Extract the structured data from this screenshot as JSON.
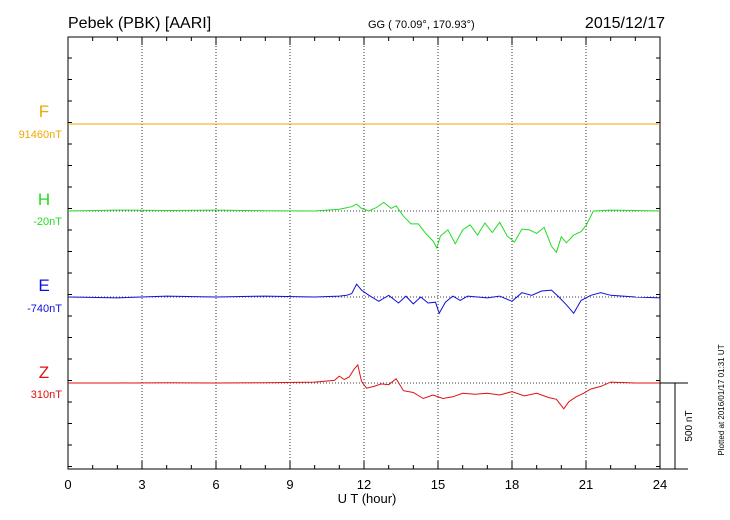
{
  "header": {
    "station": "Pebek (PBK)  [AARI]",
    "coords": "GG ( 70.09°, 170.93°)",
    "date": "2015/12/17"
  },
  "side_note": "Plotted at 2016/01/17 01:31  UT",
  "scale_label": "500 nT",
  "colors": {
    "F": "#f0a800",
    "H": "#22dd22",
    "E": "#1010dd",
    "Z": "#e01010"
  },
  "chart_data": {
    "type": "line",
    "xlabel": "U T (hour)",
    "xlim": [
      0,
      24
    ],
    "xticks": [
      0,
      3,
      6,
      9,
      12,
      15,
      18,
      21,
      24
    ],
    "scale_bar_nT": 500,
    "series": [
      {
        "name": "F",
        "baseline_label": "91460nT",
        "x": [
          0,
          3,
          6,
          9,
          12,
          15,
          18,
          21,
          24
        ],
        "y": [
          0,
          0,
          0,
          0,
          0,
          0,
          0,
          0,
          0
        ]
      },
      {
        "name": "H",
        "baseline_label": "-20nT",
        "x": [
          0,
          2,
          4,
          6,
          8,
          10,
          11,
          11.5,
          11.7,
          11.9,
          12.2,
          12.5,
          12.8,
          13.1,
          13.3,
          13.6,
          13.9,
          14.2,
          14.5,
          14.8,
          14.95,
          15.1,
          15.4,
          15.7,
          16.0,
          16.3,
          16.6,
          16.9,
          17.2,
          17.5,
          17.8,
          18.1,
          18.4,
          18.7,
          19.0,
          19.3,
          19.6,
          19.8,
          20.0,
          20.2,
          20.5,
          20.8,
          21.0,
          21.3,
          22,
          23,
          24
        ],
        "y": [
          0,
          5,
          3,
          5,
          2,
          0,
          10,
          25,
          40,
          15,
          0,
          20,
          50,
          15,
          30,
          -30,
          -75,
          -75,
          -130,
          -175,
          -215,
          -145,
          -110,
          -190,
          -110,
          -80,
          -140,
          -70,
          -125,
          -65,
          -145,
          -180,
          -105,
          -110,
          -130,
          -95,
          -205,
          -240,
          -150,
          -185,
          -140,
          -120,
          -85,
          0,
          5,
          3,
          0
        ]
      },
      {
        "name": "E",
        "baseline_label": "-740nT",
        "x": [
          0,
          2,
          4,
          6,
          8,
          10,
          11,
          11.3,
          11.5,
          11.7,
          11.9,
          12.2,
          12.6,
          13.0,
          13.4,
          13.7,
          14.0,
          14.3,
          14.6,
          14.9,
          15.05,
          15.3,
          15.6,
          15.9,
          16.2,
          16.6,
          17.0,
          17.5,
          18.0,
          18.4,
          18.8,
          19.2,
          19.6,
          19.9,
          20.2,
          20.5,
          20.8,
          21.2,
          21.6,
          22,
          23,
          24
        ],
        "y": [
          0,
          -5,
          5,
          0,
          5,
          0,
          5,
          10,
          20,
          75,
          40,
          10,
          -25,
          10,
          -35,
          5,
          -40,
          0,
          -35,
          -30,
          -95,
          -30,
          5,
          -20,
          5,
          0,
          -5,
          5,
          -25,
          25,
          10,
          35,
          40,
          0,
          -45,
          -95,
          -20,
          10,
          25,
          10,
          0,
          -5
        ]
      },
      {
        "name": "Z",
        "baseline_label": "310nT",
        "x": [
          0,
          2,
          4,
          6,
          8,
          10,
          10.8,
          11.0,
          11.2,
          11.4,
          11.6,
          11.75,
          11.9,
          12.1,
          12.4,
          12.7,
          13.0,
          13.3,
          13.6,
          14.0,
          14.4,
          14.8,
          15.2,
          15.6,
          16.0,
          16.5,
          17.0,
          17.5,
          18.0,
          18.5,
          19.0,
          19.5,
          19.8,
          20.1,
          20.3,
          20.6,
          20.9,
          21.2,
          21.6,
          22,
          23,
          24
        ],
        "y": [
          0,
          0,
          2,
          0,
          2,
          5,
          15,
          40,
          20,
          35,
          80,
          105,
          10,
          -30,
          -20,
          -5,
          -10,
          25,
          -45,
          -55,
          -90,
          -70,
          -90,
          -80,
          -60,
          -65,
          -60,
          -70,
          -50,
          -75,
          -60,
          -85,
          -95,
          -150,
          -110,
          -80,
          -60,
          -35,
          -20,
          5,
          0,
          0
        ]
      }
    ]
  }
}
